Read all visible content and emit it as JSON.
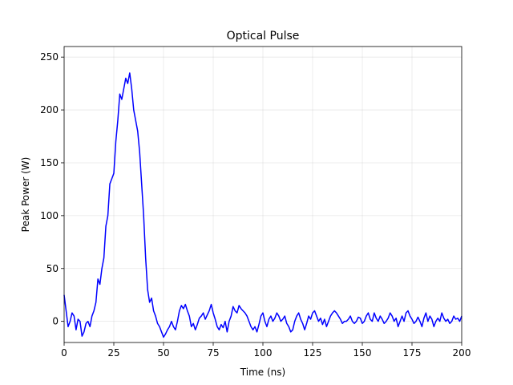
{
  "chart_data": {
    "type": "line",
    "title": "Optical Pulse",
    "xlabel": "Time (ns)",
    "ylabel": "Peak Power (W)",
    "xlim": [
      0,
      200
    ],
    "ylim": [
      -20,
      260
    ],
    "xticks": [
      0,
      25,
      50,
      75,
      100,
      125,
      150,
      175,
      200
    ],
    "yticks": [
      0,
      50,
      100,
      150,
      200,
      250
    ],
    "grid": true,
    "series": [
      {
        "color": "#0000ff",
        "x": [
          0,
          1,
          2,
          3,
          4,
          5,
          6,
          7,
          8,
          9,
          10,
          11,
          12,
          13,
          14,
          15,
          16,
          17,
          18,
          19,
          20,
          21,
          22,
          23,
          24,
          25,
          26,
          27,
          28,
          29,
          30,
          31,
          32,
          33,
          34,
          35,
          36,
          37,
          38,
          39,
          40,
          41,
          42,
          43,
          44,
          45,
          46,
          47,
          48,
          49,
          50,
          51,
          52,
          53,
          54,
          55,
          56,
          57,
          58,
          59,
          60,
          61,
          62,
          63,
          64,
          65,
          66,
          67,
          68,
          69,
          70,
          71,
          72,
          73,
          74,
          75,
          76,
          77,
          78,
          79,
          80,
          81,
          82,
          83,
          84,
          85,
          86,
          87,
          88,
          89,
          90,
          91,
          92,
          93,
          94,
          95,
          96,
          97,
          98,
          99,
          100,
          101,
          102,
          103,
          104,
          105,
          106,
          107,
          108,
          109,
          110,
          111,
          112,
          113,
          114,
          115,
          116,
          117,
          118,
          119,
          120,
          121,
          122,
          123,
          124,
          125,
          126,
          127,
          128,
          129,
          130,
          131,
          132,
          133,
          134,
          135,
          136,
          137,
          138,
          139,
          140,
          141,
          142,
          143,
          144,
          145,
          146,
          147,
          148,
          149,
          150,
          151,
          152,
          153,
          154,
          155,
          156,
          157,
          158,
          159,
          160,
          161,
          162,
          163,
          164,
          165,
          166,
          167,
          168,
          169,
          170,
          171,
          172,
          173,
          174,
          175,
          176,
          177,
          178,
          179,
          180,
          181,
          182,
          183,
          184,
          185,
          186,
          187,
          188,
          189,
          190,
          191,
          192,
          193,
          194,
          195,
          196,
          197,
          198,
          199,
          200
        ],
        "y": [
          25,
          10,
          -5,
          0,
          8,
          5,
          -8,
          2,
          0,
          -14,
          -10,
          -2,
          0,
          -5,
          5,
          10,
          18,
          40,
          35,
          50,
          60,
          90,
          100,
          130,
          135,
          140,
          170,
          190,
          215,
          210,
          220,
          230,
          225,
          235,
          220,
          200,
          190,
          180,
          160,
          130,
          100,
          60,
          30,
          18,
          22,
          10,
          5,
          -2,
          -5,
          -10,
          -15,
          -12,
          -8,
          -5,
          0,
          -5,
          -8,
          0,
          10,
          15,
          12,
          16,
          10,
          5,
          -5,
          -2,
          -8,
          -3,
          3,
          5,
          8,
          2,
          6,
          10,
          16,
          8,
          2,
          -5,
          -8,
          -3,
          -6,
          0,
          -10,
          0,
          5,
          14,
          10,
          8,
          15,
          12,
          10,
          8,
          5,
          0,
          -5,
          -8,
          -5,
          -10,
          -3,
          5,
          8,
          0,
          -5,
          2,
          5,
          0,
          3,
          8,
          5,
          0,
          2,
          5,
          -2,
          -5,
          -10,
          -8,
          0,
          5,
          8,
          2,
          -2,
          -8,
          -2,
          5,
          2,
          8,
          10,
          5,
          0,
          3,
          -3,
          2,
          -5,
          0,
          5,
          8,
          10,
          8,
          5,
          2,
          -2,
          0,
          0,
          2,
          5,
          0,
          -2,
          0,
          4,
          3,
          -2,
          0,
          5,
          8,
          2,
          0,
          8,
          3,
          0,
          5,
          2,
          -2,
          0,
          3,
          8,
          5,
          0,
          3,
          -5,
          0,
          5,
          0,
          8,
          10,
          5,
          2,
          -2,
          0,
          4,
          0,
          -5,
          3,
          8,
          0,
          5,
          2,
          -5,
          0,
          3,
          0,
          8,
          3,
          0,
          2,
          -2,
          0,
          5,
          2,
          3,
          0,
          5
        ]
      }
    ]
  }
}
